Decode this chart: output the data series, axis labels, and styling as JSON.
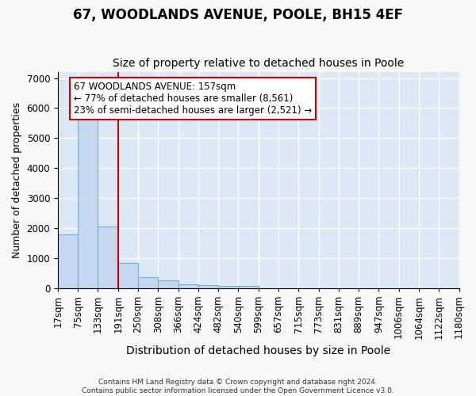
{
  "title": "67, WOODLANDS AVENUE, POOLE, BH15 4EF",
  "subtitle": "Size of property relative to detached houses in Poole",
  "xlabel": "Distribution of detached houses by size in Poole",
  "ylabel": "Number of detached properties",
  "footer_line1": "Contains HM Land Registry data © Crown copyright and database right 2024.",
  "footer_line2": "Contains public sector information licensed under the Open Government Licence v3.0.",
  "bin_labels": [
    "17sqm",
    "75sqm",
    "133sqm",
    "191sqm",
    "250sqm",
    "308sqm",
    "366sqm",
    "424sqm",
    "482sqm",
    "540sqm",
    "599sqm",
    "657sqm",
    "715sqm",
    "773sqm",
    "831sqm",
    "889sqm",
    "947sqm",
    "1006sqm",
    "1064sqm",
    "1122sqm",
    "1180sqm"
  ],
  "bar_heights": [
    1780,
    5750,
    2060,
    820,
    370,
    240,
    120,
    80,
    60,
    70,
    0,
    0,
    0,
    0,
    0,
    0,
    0,
    0,
    0,
    0
  ],
  "bar_color": "#c5d8f0",
  "bar_edge_color": "#7aadd4",
  "vline_color": "#cc0000",
  "vline_x_index": 2,
  "annotation_line1": "67 WOODLANDS AVENUE: 157sqm",
  "annotation_line2": "← 77% of detached houses are smaller (8,561)",
  "annotation_line3": "23% of semi-detached houses are larger (2,521) →",
  "annotation_box_color": "#ffffff",
  "annotation_box_edge": "#cc0000",
  "ylim": [
    0,
    7200
  ],
  "xlim_left": -0.5,
  "xlim_right": 20.5,
  "fig_bg_color": "#f8f8f8",
  "plot_bg_color": "#dce8f5",
  "grid_color": "#ffffff",
  "title_fontsize": 12,
  "subtitle_fontsize": 10,
  "axis_label_fontsize": 10,
  "tick_fontsize": 8.5,
  "ylabel_fontsize": 9
}
